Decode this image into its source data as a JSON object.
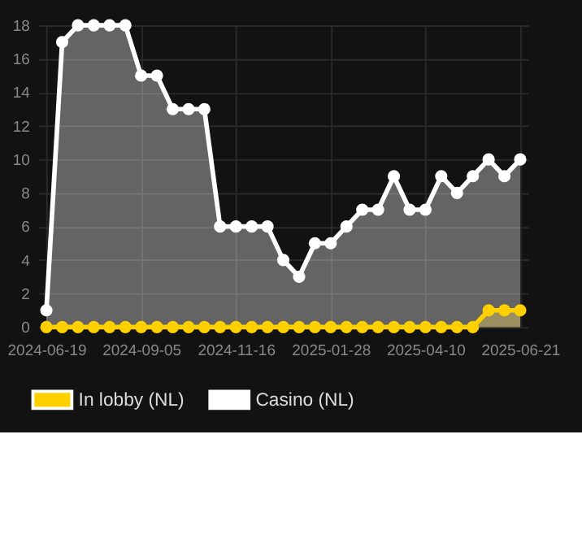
{
  "chart_data": {
    "type": "area",
    "categories": [
      "2024-06-19",
      null,
      null,
      null,
      null,
      null,
      "2024-09-05",
      null,
      null,
      null,
      null,
      null,
      "2024-11-16",
      null,
      null,
      null,
      null,
      null,
      "2025-01-28",
      null,
      null,
      null,
      null,
      null,
      "2025-04-10",
      null,
      null,
      null,
      null,
      null,
      "2025-06-21"
    ],
    "series": [
      {
        "name": "In lobby (NL)",
        "color": "#ffd000",
        "values": [
          0,
          0,
          0,
          0,
          0,
          0,
          0,
          0,
          0,
          0,
          0,
          0,
          0,
          0,
          0,
          0,
          0,
          0,
          0,
          0,
          0,
          0,
          0,
          0,
          0,
          0,
          0,
          0,
          1,
          1,
          1
        ]
      },
      {
        "name": "Casino (NL)",
        "color": "#ffffff",
        "values": [
          1,
          17,
          18,
          18,
          18,
          18,
          15,
          15,
          13,
          13,
          13,
          6,
          6,
          6,
          6,
          4,
          3,
          5,
          5,
          6,
          7,
          7,
          9,
          7,
          7,
          9,
          8,
          9,
          10,
          9,
          10
        ]
      }
    ],
    "ylim": [
      0,
      18
    ],
    "yticks": [
      0,
      2,
      4,
      6,
      8,
      10,
      12,
      14,
      16,
      18
    ],
    "grid": true,
    "legend": "bottom",
    "marker": "circle"
  }
}
